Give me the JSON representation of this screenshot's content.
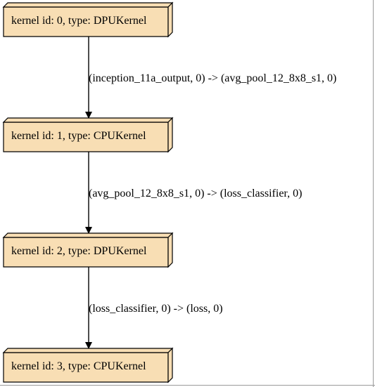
{
  "graph": {
    "nodes": [
      {
        "label": "kernel id: 0, type: DPUKernel"
      },
      {
        "label": "kernel id: 1, type: CPUKernel"
      },
      {
        "label": "kernel id: 2, type: DPUKernel"
      },
      {
        "label": "kernel id: 3, type: CPUKernel"
      }
    ],
    "edges": [
      {
        "from": 0,
        "to": 1,
        "label": "(inception_11a_output, 0) -> (avg_pool_12_8x8_s1, 0)"
      },
      {
        "from": 1,
        "to": 2,
        "label": "(avg_pool_12_8x8_s1, 0) -> (loss_classifier, 0)"
      },
      {
        "from": 2,
        "to": 3,
        "label": "(loss_classifier, 0) -> (loss, 0)"
      }
    ]
  },
  "colors": {
    "node_fill": "#f8deb4",
    "node_stroke": "#000000",
    "edge_stroke": "#000000"
  }
}
